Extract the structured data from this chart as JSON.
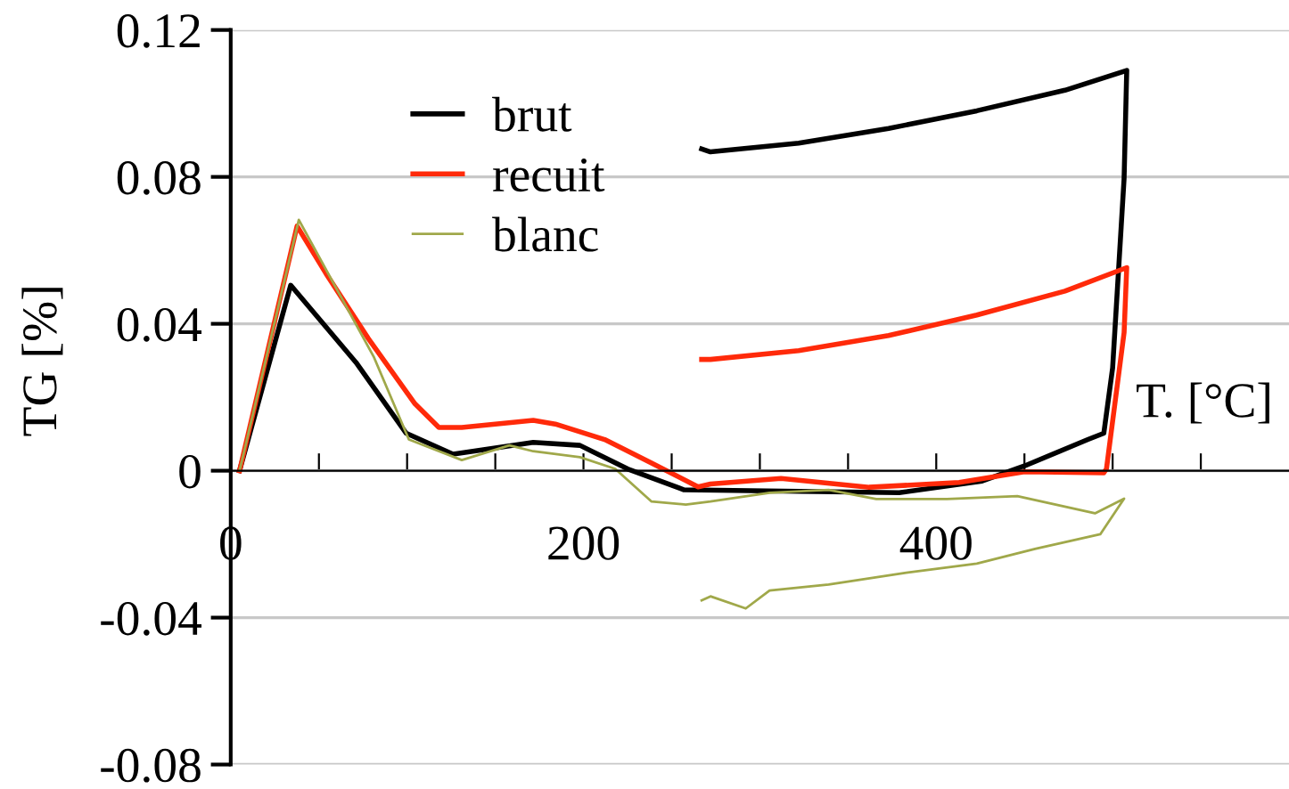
{
  "chart_data": {
    "type": "line",
    "xlabel": "T. [°C]",
    "ylabel": "TG [%]",
    "xlim": [
      0,
      600
    ],
    "ylim": [
      -0.08,
      0.12
    ],
    "xticks": [
      0,
      {
        "value": 50,
        "label": null
      },
      {
        "value": 100,
        "label": null
      },
      {
        "value": 150,
        "label": null
      },
      200,
      {
        "value": 250,
        "label": null
      },
      {
        "value": 300,
        "label": null
      },
      {
        "value": 350,
        "label": null
      },
      400,
      {
        "value": 450,
        "label": null
      },
      {
        "value": 500,
        "label": null
      },
      {
        "value": 550,
        "label": null
      }
    ],
    "yticks": [
      -0.08,
      -0.04,
      0,
      0.04,
      0.08,
      0.12
    ],
    "grid": "y",
    "legend": "top left",
    "marker": "none",
    "line_style": "solid",
    "series": [
      {
        "name": "brut",
        "color": "#000000",
        "x": [
          5,
          34,
          71,
          99.5,
          126,
          171.5,
          198,
          225,
          257,
          379,
          426,
          450,
          486,
          495,
          500,
          506.5,
          508,
          473,
          423,
          373,
          322,
          272,
          267
        ],
        "values": [
          0,
          0.0505,
          0.0295,
          0.0102,
          0.0045,
          0.0077,
          0.0069,
          0.0005,
          -0.0052,
          -0.006,
          -0.0028,
          0.0013,
          0.0085,
          0.0102,
          0.028,
          0.0795,
          0.109,
          0.1036,
          0.098,
          0.0932,
          0.0892,
          0.0868,
          0.0876
        ]
      },
      {
        "name": "recuit",
        "color": "#ff2a0a",
        "x": [
          5,
          37.6,
          54,
          78,
          104.5,
          118,
          131,
          171.5,
          184,
          212,
          238.6,
          265,
          272,
          312,
          362,
          413,
          450,
          495,
          496.5,
          506.5,
          508,
          473,
          423,
          373,
          322,
          272,
          267
        ],
        "values": [
          0,
          0.0666,
          0.0537,
          0.036,
          0.0182,
          0.0118,
          0.0118,
          0.0137,
          0.0127,
          0.0085,
          0.0021,
          -0.0044,
          -0.0036,
          -0.0021,
          -0.0045,
          -0.0032,
          -0.0003,
          -0.0006,
          0.0005,
          0.0376,
          0.0553,
          0.0489,
          0.0424,
          0.0368,
          0.0327,
          0.0303,
          0.0303
        ]
      },
      {
        "name": "blanc",
        "color": "#a0a84a",
        "x": [
          5,
          38.6,
          81,
          101,
          131,
          158,
          171.5,
          198,
          218,
          238.6,
          258,
          272,
          305.5,
          339,
          366,
          406,
          446,
          490,
          506.5,
          493,
          456,
          423,
          383,
          339,
          305.5,
          292,
          272,
          267
        ],
        "values": [
          0,
          0.0683,
          0.0311,
          0.0085,
          0.0029,
          0.0069,
          0.0053,
          0.0037,
          0.0005,
          -0.0084,
          -0.0092,
          -0.0084,
          -0.006,
          -0.0052,
          -0.0077,
          -0.0077,
          -0.0069,
          -0.0116,
          -0.0076,
          -0.0173,
          -0.0213,
          -0.0253,
          -0.0278,
          -0.031,
          -0.0326,
          -0.0375,
          -0.0342,
          -0.0353
        ]
      }
    ]
  }
}
